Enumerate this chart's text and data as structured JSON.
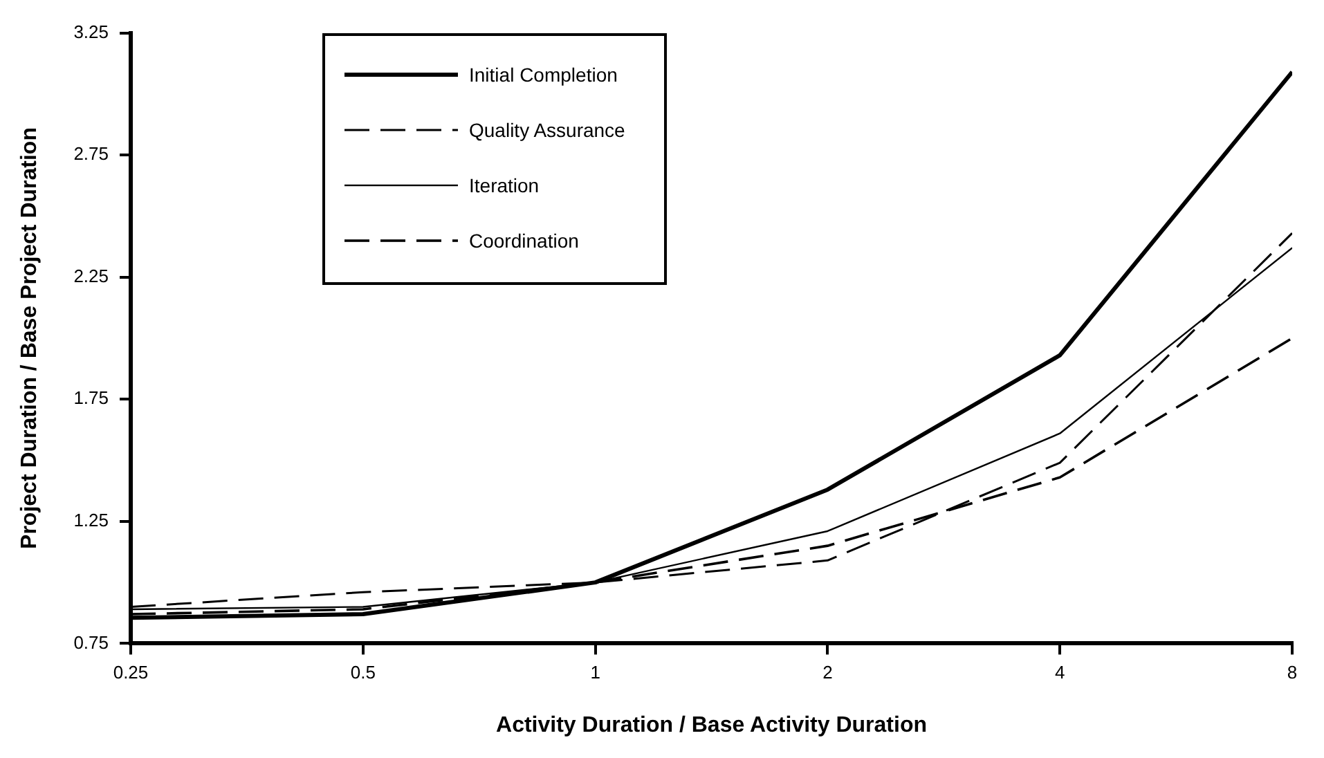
{
  "chart_data": {
    "type": "line",
    "xlabel": "Activity Duration / Base Activity Duration",
    "ylabel": "Project Duration / Base Project Duration",
    "x": [
      0.25,
      0.5,
      1,
      2,
      4,
      8
    ],
    "log": "x",
    "xlim": [
      0.25,
      8
    ],
    "xticks": [
      0.25,
      0.5,
      1,
      2,
      4,
      8
    ],
    "ylim": [
      0.75,
      3.25
    ],
    "yticks": [
      0.75,
      1.25,
      1.75,
      2.25,
      2.75,
      3.25
    ],
    "grid": false,
    "legend": "top left",
    "marker": "none",
    "series": [
      {
        "name": "Initial Completion",
        "color": "#000000",
        "line_style": "solid",
        "values": [
          0.855,
          0.87,
          1.0,
          1.38,
          1.93,
          3.09
        ]
      },
      {
        "name": "Quality Assurance",
        "color": "#000000",
        "line_style": "dashed",
        "values": [
          0.9,
          0.96,
          1.0,
          1.09,
          1.49,
          2.43
        ]
      },
      {
        "name": "Iteration",
        "color": "#000000",
        "line_style": "solid",
        "values": [
          0.89,
          0.9,
          1.0,
          1.21,
          1.61,
          2.37
        ]
      },
      {
        "name": "Coordination",
        "color": "#000000",
        "line_style": "dashed",
        "values": [
          0.87,
          0.89,
          1.0,
          1.15,
          1.43,
          2.0
        ]
      }
    ]
  }
}
